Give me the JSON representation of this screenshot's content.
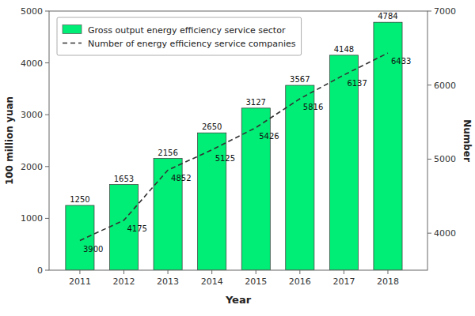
{
  "chart_data": {
    "type": "bar",
    "xlabel": "Year",
    "ylabel": "100 million yuan",
    "y2label": "Number",
    "x": [
      2011,
      2012,
      2013,
      2014,
      2015,
      2016,
      2017,
      2018
    ],
    "xlim": [
      2010.3,
      2018.9
    ],
    "xticks": [
      2011,
      2012,
      2013,
      2014,
      2015,
      2016,
      2017,
      2018
    ],
    "ylim": [
      0,
      5000
    ],
    "yticks": [
      0,
      1000,
      2000,
      3000,
      4000,
      5000
    ],
    "y2lim": [
      3500,
      7000
    ],
    "y2ticks": [
      4000,
      5000,
      6000,
      7000
    ],
    "series": [
      {
        "name": "Gross output energy efficiency service sector",
        "type": "bar",
        "color": "#00EE76",
        "values": [
          1250,
          1653,
          2156,
          2650,
          3127,
          3567,
          4148,
          4784
        ]
      },
      {
        "name": "Number of energy efficiency service companies",
        "type": "line",
        "axis": "y2",
        "color": "#333333",
        "line_style": "dashed",
        "values": [
          3900,
          4175,
          4852,
          5125,
          5426,
          5816,
          6137,
          6433
        ]
      }
    ],
    "data_labels": true,
    "legend": "upper left",
    "grid": false
  }
}
